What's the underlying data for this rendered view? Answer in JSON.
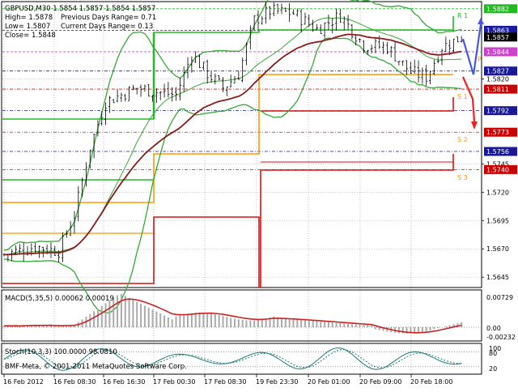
{
  "header": {
    "symbol_line": "GBPUSD,M30  1.5854 1.5857 1.5854 1.5857",
    "high": "High= 1.5878",
    "low": "Low= 1.5807",
    "close": "Close= 1.5848",
    "prev_range": "Previous Days Range= 0.71",
    "curr_range": "Current Days Range= 0.13"
  },
  "pivots": {
    "r1": "R 1",
    "pp": "P",
    "s1": "S 1",
    "s2": "S 2",
    "s3": "S 3"
  },
  "price_axis": {
    "labels": [
      "1.5882",
      "1.5863",
      "1.5857",
      "1.5844",
      "1.5827",
      "1.5820",
      "1.5811",
      "1.5792",
      "1.5773",
      "1.5756",
      "1.5745",
      "1.5740",
      "1.5720",
      "1.5695",
      "1.5670",
      "1.5645"
    ],
    "values": [
      1.5882,
      1.5863,
      1.5857,
      1.5844,
      1.5827,
      1.582,
      1.5811,
      1.5792,
      1.5773,
      1.5756,
      1.5745,
      1.574,
      1.572,
      1.5695,
      1.567,
      1.5645
    ],
    "highlight": {
      "1.5882": "#22bb22",
      "1.5863": "#1a1aa0",
      "1.5857": "#000000",
      "1.5844": "#cc44cc",
      "1.5827": "#1a1a99",
      "1.5811": "#cc0000",
      "1.5792": "#1a1a99",
      "1.5773": "#cc0000",
      "1.5756": "#1a1a99",
      "1.5740": "#cc0000"
    }
  },
  "macd": {
    "label": "MACD(5,35,5) 0.00062 0.00019",
    "axis": [
      "0.00729",
      "0.00",
      "-0.00232"
    ],
    "axis_values": [
      0.00729,
      0.0,
      -0.00232
    ]
  },
  "stoch": {
    "label": "Stoch(10,3,3) 100.0000 98.0810",
    "axis": [
      "100",
      "80",
      "20"
    ],
    "axis_values": [
      100,
      80,
      20
    ]
  },
  "time_axis": [
    "16 Feb 2012",
    "16 Feb 08:30",
    "16 Feb 16:30",
    "17 Feb 00:30",
    "17 Feb 08:30",
    "19 Feb 23:30",
    "20 Feb 01:00",
    "20 Feb 09:00",
    "20 Feb 18:00"
  ],
  "copyright": "BMF-Meta, © 2001-2011 MetaQuotes Software Corp.",
  "colors": {
    "candle": "#000000",
    "bollinger": "#33aa33",
    "ma": "#8b1a1a",
    "pivot_green": "#22bb22",
    "pivot_red": "#dd1111",
    "pivot_orange": "#ff9900",
    "magenta": "#cc44cc",
    "navy": "#1a1a99",
    "arrow_blue": "#4455ee",
    "arrow_red": "#ee2222"
  }
}
